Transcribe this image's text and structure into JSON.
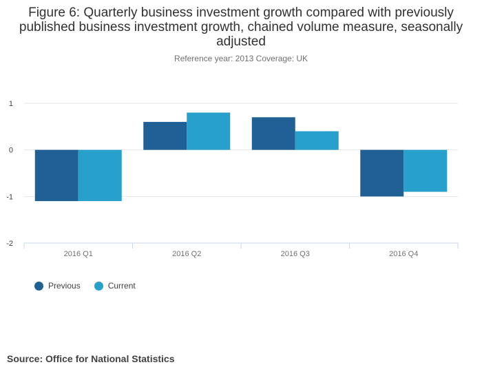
{
  "chart_data": {
    "type": "bar",
    "title": "Figure 6: Quarterly business investment growth compared with previously published business investment growth, chained volume measure, seasonally adjusted",
    "subtitle": "Reference year: 2013 Coverage: UK",
    "categories": [
      "2016 Q1",
      "2016 Q2",
      "2016 Q3",
      "2016 Q4"
    ],
    "series": [
      {
        "name": "Previous",
        "color": "#206095",
        "values": [
          -1.1,
          0.6,
          0.7,
          -1.0
        ]
      },
      {
        "name": "Current",
        "color": "#27a0cc",
        "values": [
          -1.1,
          0.8,
          0.4,
          -0.9
        ]
      }
    ],
    "yticks": [
      1,
      0,
      -1,
      -2
    ],
    "ylim": [
      -2,
      1
    ],
    "xlabel": "",
    "ylabel": "",
    "legend": "bottom-left"
  },
  "footer": {
    "source": "Source: Office for National Statistics"
  }
}
